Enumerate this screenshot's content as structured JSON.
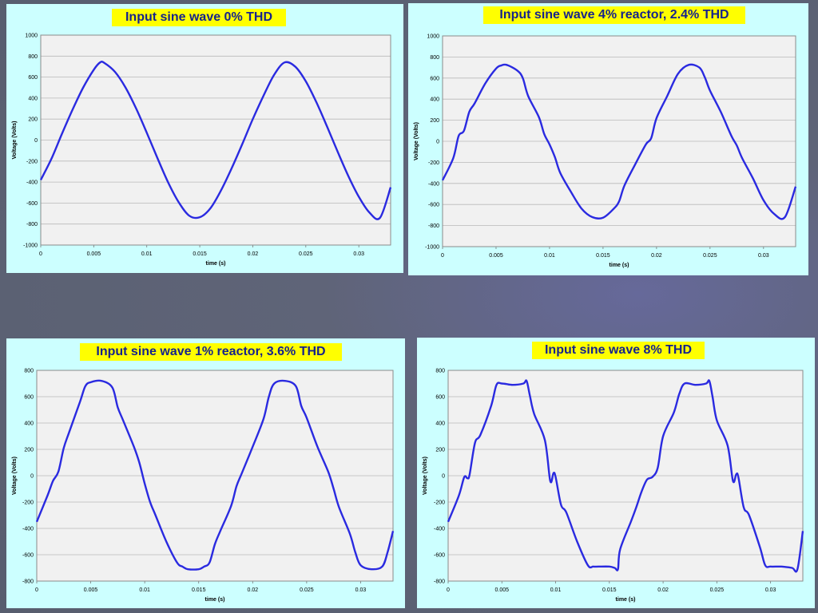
{
  "page": {
    "background": "#5b6173",
    "panel_color": "#ccffff",
    "title_bg": "#ffff00",
    "title_color": "#16238c",
    "line_color": "#2a2ae0"
  },
  "chart_data": [
    {
      "type": "line",
      "title": "Input sine wave 0% THD",
      "xlabel": "time (s)",
      "ylabel": "Voltage (Volts)",
      "xlim": [
        0,
        0.033
      ],
      "ylim": [
        -1000,
        1000
      ],
      "xticks": [
        0,
        0.005,
        0.01,
        0.015,
        0.02,
        0.025,
        0.03
      ],
      "xtick_labels": [
        "0",
        "0.005",
        "0.01",
        "0.015",
        "0.02",
        "0.025",
        "0.03"
      ],
      "yticks": [
        -1000,
        -800,
        -600,
        -400,
        -200,
        0,
        200,
        400,
        600,
        800,
        1000
      ],
      "ytick_labels": [
        "-1000",
        "-800",
        "-600",
        "-400",
        "-200",
        "0",
        "200",
        "400",
        "600",
        "800",
        "1000"
      ],
      "grid": true,
      "series": [
        {
          "x": [
            0,
            0.001,
            0.002,
            0.003,
            0.004,
            0.005,
            0.0056,
            0.006,
            0.007,
            0.008,
            0.009,
            0.01,
            0.011,
            0.012,
            0.013,
            0.014,
            0.015,
            0.016,
            0.017,
            0.018,
            0.019,
            0.02,
            0.021,
            0.022,
            0.023,
            0.024,
            0.025,
            0.026,
            0.027,
            0.028,
            0.029,
            0.03,
            0.031,
            0.032,
            0.033
          ],
          "y": [
            -380,
            -180,
            60,
            290,
            500,
            670,
            740,
            735,
            650,
            500,
            300,
            70,
            -170,
            -400,
            -590,
            -720,
            -735,
            -650,
            -480,
            -270,
            -40,
            200,
            420,
            620,
            740,
            700,
            560,
            360,
            130,
            -110,
            -340,
            -540,
            -690,
            -740,
            -450
          ]
        }
      ]
    },
    {
      "type": "line",
      "title": "Input sine wave 4% reactor, 2.4% THD",
      "xlabel": "time (s)",
      "ylabel": "Voltage (Volts)",
      "xlim": [
        0,
        0.033
      ],
      "ylim": [
        -1000,
        1000
      ],
      "xticks": [
        0,
        0.005,
        0.01,
        0.015,
        0.02,
        0.025,
        0.03
      ],
      "xtick_labels": [
        "0",
        "0.005",
        "0.01",
        "0.015",
        "0.02",
        "0.025",
        "0.03"
      ],
      "yticks": [
        -1000,
        -800,
        -600,
        -400,
        -200,
        0,
        200,
        400,
        600,
        800,
        1000
      ],
      "ytick_labels": [
        "-1000",
        "-800",
        "-600",
        "-400",
        "-200",
        "0",
        "200",
        "400",
        "600",
        "800",
        "1000"
      ],
      "grid": true,
      "series": [
        {
          "x": [
            0,
            0.001,
            0.0015,
            0.002,
            0.0025,
            0.003,
            0.004,
            0.005,
            0.0055,
            0.006,
            0.007,
            0.0075,
            0.008,
            0.009,
            0.0095,
            0.01,
            0.0105,
            0.011,
            0.012,
            0.013,
            0.014,
            0.015,
            0.016,
            0.0165,
            0.017,
            0.018,
            0.019,
            0.0195,
            0.02,
            0.021,
            0.022,
            0.023,
            0.024,
            0.0245,
            0.025,
            0.026,
            0.027,
            0.0275,
            0.028,
            0.029,
            0.03,
            0.031,
            0.032,
            0.033
          ],
          "y": [
            -370,
            -160,
            50,
            100,
            280,
            360,
            550,
            690,
            720,
            725,
            670,
            600,
            430,
            230,
            70,
            -30,
            -150,
            -300,
            -480,
            -640,
            -720,
            -725,
            -640,
            -570,
            -420,
            -220,
            -30,
            30,
            220,
            430,
            640,
            725,
            700,
            610,
            480,
            280,
            50,
            -40,
            -160,
            -350,
            -560,
            -690,
            -720,
            -430
          ]
        }
      ]
    },
    {
      "type": "line",
      "title": "Input sine wave 1% reactor, 3.6% THD",
      "xlabel": "time (s)",
      "ylabel": "Voltage (Volts)",
      "xlim": [
        0,
        0.033
      ],
      "ylim": [
        -800,
        800
      ],
      "xticks": [
        0,
        0.005,
        0.01,
        0.015,
        0.02,
        0.025,
        0.03
      ],
      "xtick_labels": [
        "0",
        "0.005",
        "0.01",
        "0.015",
        "0.02",
        "0.025",
        "0.03"
      ],
      "yticks": [
        -800,
        -600,
        -400,
        -200,
        0,
        200,
        400,
        600,
        800
      ],
      "ytick_labels": [
        "-800",
        "-600",
        "-400",
        "-200",
        "0",
        "200",
        "400",
        "600",
        "800"
      ],
      "grid": true,
      "series": [
        {
          "x": [
            0,
            0.001,
            0.0015,
            0.002,
            0.0025,
            0.003,
            0.004,
            0.0045,
            0.005,
            0.006,
            0.007,
            0.0075,
            0.008,
            0.009,
            0.0095,
            0.01,
            0.0105,
            0.011,
            0.012,
            0.013,
            0.0135,
            0.014,
            0.015,
            0.0155,
            0.016,
            0.0165,
            0.017,
            0.018,
            0.0185,
            0.019,
            0.02,
            0.021,
            0.0215,
            0.022,
            0.023,
            0.024,
            0.0245,
            0.025,
            0.026,
            0.027,
            0.0275,
            0.028,
            0.029,
            0.0295,
            0.03,
            0.031,
            0.032,
            0.0325,
            0.033
          ],
          "y": [
            -350,
            -150,
            -40,
            30,
            210,
            330,
            560,
            680,
            710,
            720,
            670,
            520,
            420,
            220,
            100,
            -60,
            -200,
            -300,
            -500,
            -660,
            -690,
            -710,
            -710,
            -690,
            -660,
            -520,
            -420,
            -230,
            -80,
            20,
            220,
            430,
            600,
            700,
            720,
            680,
            530,
            440,
            220,
            30,
            -100,
            -240,
            -440,
            -580,
            -680,
            -710,
            -690,
            -580,
            -420
          ]
        }
      ]
    },
    {
      "type": "line",
      "title": "Input sine wave 8% THD",
      "xlabel": "time (s)",
      "ylabel": "Voltage (Volts)",
      "xlim": [
        0,
        0.033
      ],
      "ylim": [
        -800,
        800
      ],
      "xticks": [
        0,
        0.005,
        0.01,
        0.015,
        0.02,
        0.025,
        0.03
      ],
      "xtick_labels": [
        "0",
        "0.005",
        "0.01",
        "0.015",
        "0.02",
        "0.025",
        "0.03"
      ],
      "yticks": [
        -800,
        -600,
        -400,
        -200,
        0,
        200,
        400,
        600,
        800
      ],
      "ytick_labels": [
        "-800",
        "-600",
        "-400",
        "-200",
        "0",
        "200",
        "400",
        "600",
        "800"
      ],
      "grid": true,
      "series": [
        {
          "x": [
            0,
            0.001,
            0.0015,
            0.0018,
            0.002,
            0.0025,
            0.003,
            0.004,
            0.0045,
            0.005,
            0.006,
            0.007,
            0.0073,
            0.0076,
            0.008,
            0.009,
            0.0095,
            0.0098,
            0.01,
            0.0105,
            0.011,
            0.012,
            0.013,
            0.0135,
            0.014,
            0.015,
            0.0155,
            0.0158,
            0.016,
            0.017,
            0.0175,
            0.018,
            0.0185,
            0.019,
            0.0195,
            0.02,
            0.021,
            0.0215,
            0.022,
            0.023,
            0.024,
            0.0243,
            0.0246,
            0.025,
            0.026,
            0.0265,
            0.0268,
            0.027,
            0.0275,
            0.028,
            0.029,
            0.0295,
            0.03,
            0.031,
            0.032,
            0.0325,
            0.033
          ],
          "y": [
            -350,
            -150,
            -10,
            -20,
            10,
            250,
            310,
            530,
            690,
            700,
            690,
            700,
            720,
            610,
            470,
            270,
            -40,
            20,
            -10,
            -220,
            -280,
            -500,
            -680,
            -690,
            -690,
            -690,
            -700,
            -710,
            -560,
            -350,
            -240,
            -120,
            -30,
            -10,
            60,
            300,
            480,
            620,
            700,
            690,
            700,
            720,
            600,
            420,
            230,
            -40,
            10,
            -10,
            -240,
            -300,
            -540,
            -680,
            -690,
            -690,
            -700,
            -710,
            -420
          ]
        }
      ]
    }
  ]
}
